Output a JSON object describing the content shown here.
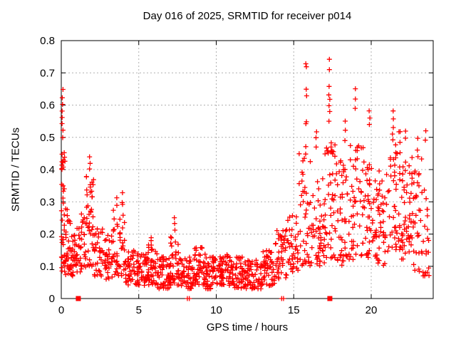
{
  "chart_data": {
    "type": "scatter",
    "title": "Day 016 of 2025, SRMTID for receiver p014",
    "xlabel": "GPS time / hours",
    "ylabel": "SRMTID / TECUs",
    "xlim": [
      0,
      24
    ],
    "ylim": [
      0,
      0.8
    ],
    "xticks": [
      [
        0,
        "0"
      ],
      [
        5,
        "5"
      ],
      [
        10,
        "10"
      ],
      [
        15,
        "15"
      ],
      [
        20,
        "20"
      ]
    ],
    "yticks": [
      [
        0,
        "0"
      ],
      [
        0.1,
        "0.1"
      ],
      [
        0.2,
        "0.2"
      ],
      [
        0.3,
        "0.3"
      ],
      [
        0.4,
        "0.4"
      ],
      [
        0.5,
        "0.5"
      ],
      [
        0.6,
        "0.6"
      ],
      [
        0.7,
        "0.7"
      ],
      [
        0.8,
        "0.8"
      ]
    ],
    "grid": true,
    "legend": "none",
    "marker": "plus",
    "marker_color": "#ff0000",
    "grid_color": "#b0b0b0",
    "border_color": "#000000",
    "scatter_bins": [
      [
        0.0,
        0.25,
        0.08,
        0.48,
        38
      ],
      [
        0.25,
        0.6,
        0.07,
        0.28,
        30
      ],
      [
        0.6,
        1.0,
        0.07,
        0.2,
        32
      ],
      [
        1.0,
        1.6,
        0.08,
        0.27,
        36
      ],
      [
        1.6,
        2.1,
        0.1,
        0.38,
        40
      ],
      [
        2.1,
        2.7,
        0.07,
        0.22,
        34
      ],
      [
        2.7,
        3.3,
        0.06,
        0.2,
        34
      ],
      [
        3.3,
        4.1,
        0.07,
        0.3,
        46
      ],
      [
        4.1,
        4.8,
        0.04,
        0.15,
        40
      ],
      [
        4.8,
        5.5,
        0.04,
        0.14,
        46
      ],
      [
        5.5,
        6.2,
        0.04,
        0.17,
        46
      ],
      [
        6.2,
        7.0,
        0.03,
        0.13,
        52
      ],
      [
        7.0,
        7.6,
        0.04,
        0.2,
        44
      ],
      [
        7.6,
        8.5,
        0.03,
        0.13,
        52
      ],
      [
        8.5,
        9.3,
        0.04,
        0.16,
        50
      ],
      [
        9.3,
        10.2,
        0.03,
        0.13,
        55
      ],
      [
        10.2,
        11.0,
        0.04,
        0.14,
        55
      ],
      [
        11.0,
        12.0,
        0.03,
        0.13,
        60
      ],
      [
        12.0,
        13.0,
        0.03,
        0.12,
        60
      ],
      [
        13.0,
        13.8,
        0.04,
        0.15,
        50
      ],
      [
        13.8,
        14.6,
        0.06,
        0.22,
        45
      ],
      [
        14.6,
        15.3,
        0.08,
        0.26,
        40
      ],
      [
        15.3,
        16.2,
        0.1,
        0.45,
        45
      ],
      [
        16.2,
        17.0,
        0.1,
        0.38,
        45
      ],
      [
        17.0,
        17.8,
        0.12,
        0.5,
        48
      ],
      [
        17.8,
        18.6,
        0.1,
        0.45,
        48
      ],
      [
        18.6,
        19.5,
        0.12,
        0.48,
        48
      ],
      [
        19.5,
        20.3,
        0.12,
        0.45,
        48
      ],
      [
        20.3,
        21.2,
        0.1,
        0.4,
        48
      ],
      [
        21.2,
        21.9,
        0.15,
        0.52,
        46
      ],
      [
        21.9,
        22.6,
        0.12,
        0.48,
        46
      ],
      [
        22.6,
        23.3,
        0.08,
        0.45,
        40
      ],
      [
        23.3,
        23.75,
        0.07,
        0.35,
        22
      ]
    ],
    "spike_columns": [
      {
        "x": 0.08,
        "values": [
          0.65,
          0.62,
          0.6,
          0.58,
          0.56,
          0.54,
          0.52,
          0.5
        ]
      },
      {
        "x": 1.85,
        "values": [
          0.44,
          0.42,
          0.4
        ]
      },
      {
        "x": 3.55,
        "values": [
          0.31,
          0.29
        ]
      },
      {
        "x": 3.95,
        "values": [
          0.33,
          0.3
        ]
      },
      {
        "x": 5.8,
        "values": [
          0.19,
          0.18
        ]
      },
      {
        "x": 7.3,
        "values": [
          0.25,
          0.23,
          0.21
        ]
      },
      {
        "x": 15.8,
        "values": [
          0.73,
          0.72,
          0.65,
          0.63,
          0.55,
          0.54,
          0.47,
          0.45
        ]
      },
      {
        "x": 16.45,
        "values": [
          0.52,
          0.5,
          0.47
        ]
      },
      {
        "x": 17.3,
        "values": [
          0.74,
          0.71,
          0.66,
          0.63,
          0.62,
          0.6,
          0.58,
          0.55
        ]
      },
      {
        "x": 18.3,
        "values": [
          0.55,
          0.52,
          0.49
        ]
      },
      {
        "x": 19.0,
        "values": [
          0.65,
          0.62,
          0.59
        ]
      },
      {
        "x": 19.9,
        "values": [
          0.58,
          0.56,
          0.54
        ]
      },
      {
        "x": 21.4,
        "values": [
          0.58,
          0.56,
          0.53,
          0.51
        ]
      },
      {
        "x": 22.2,
        "values": [
          0.52,
          0.5
        ]
      },
      {
        "x": 23.0,
        "values": [
          0.5,
          0.46
        ]
      },
      {
        "x": 23.5,
        "values": [
          0.52,
          0.49
        ]
      }
    ],
    "axis_squares_x": [
      1.1,
      17.33
    ],
    "axis_zero_points_x": [
      8.14,
      8.26,
      14.22,
      14.34
    ]
  }
}
